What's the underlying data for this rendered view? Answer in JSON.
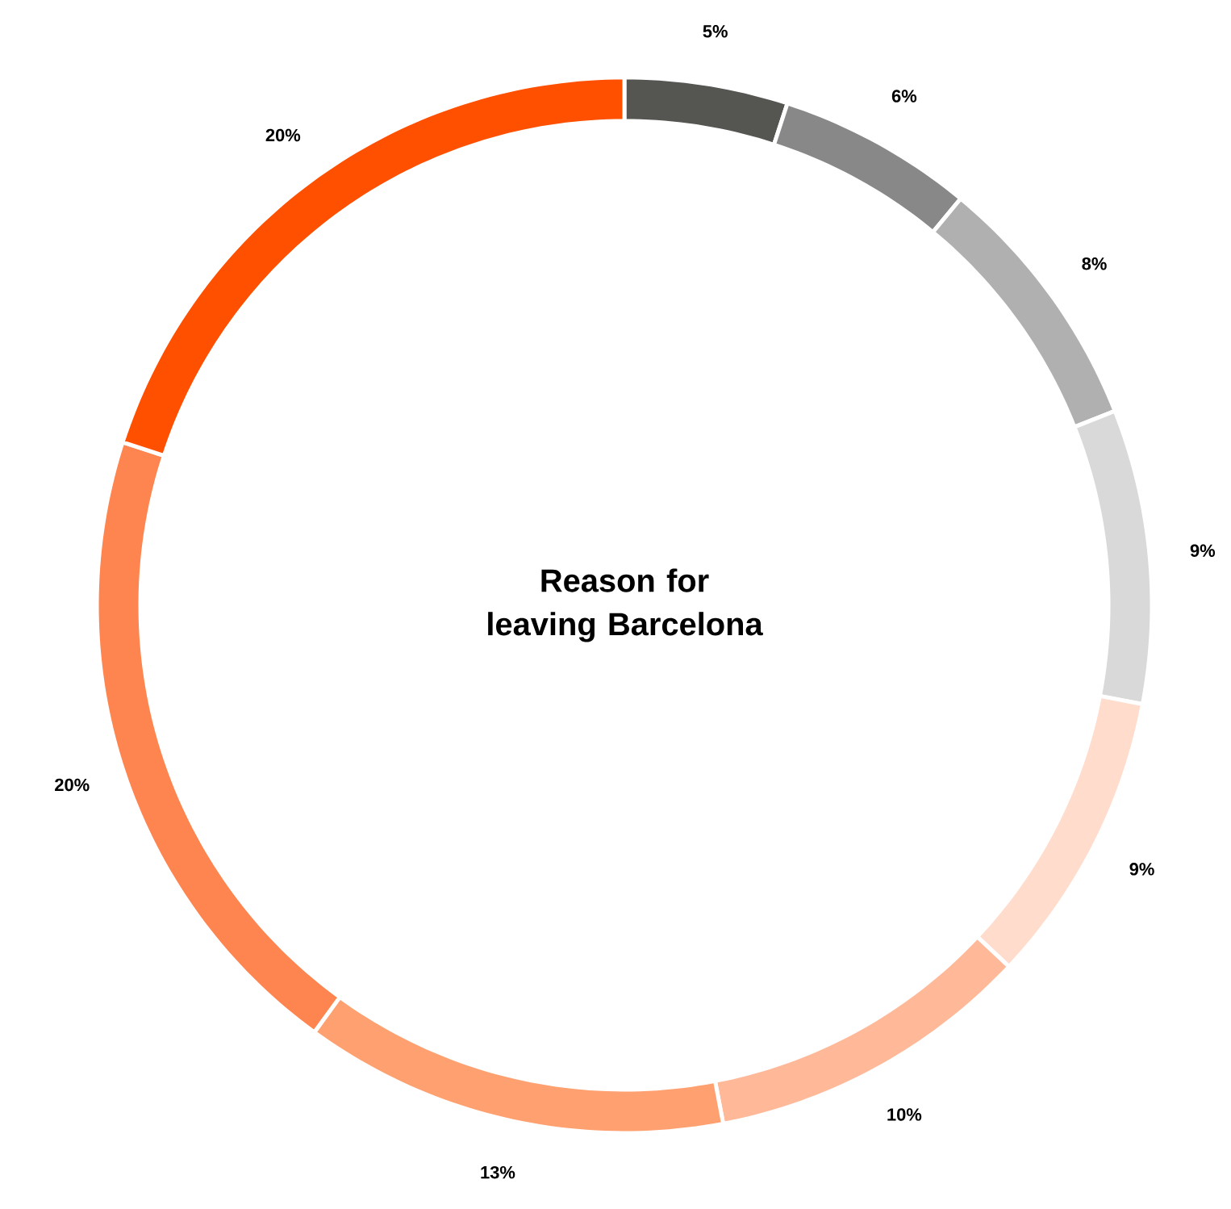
{
  "chart_data": {
    "type": "donut",
    "title": "Reason for leaving Barcelona",
    "categories": [
      null,
      null,
      null,
      null,
      null,
      null,
      null,
      null,
      null
    ],
    "values": [
      5,
      6,
      8,
      9,
      9,
      10,
      13,
      20,
      20
    ],
    "colors": [
      "#555552",
      "#888888",
      "#b0b0b0",
      "#d9d9d9",
      "#ffdccc",
      "#ffb999",
      "#ffa070",
      "#ff8550",
      "#ff5000"
    ],
    "value_labels": [
      "5%",
      "6%",
      "8%",
      "9%",
      "9%",
      "10%",
      "13%",
      "20%",
      "20%"
    ]
  }
}
